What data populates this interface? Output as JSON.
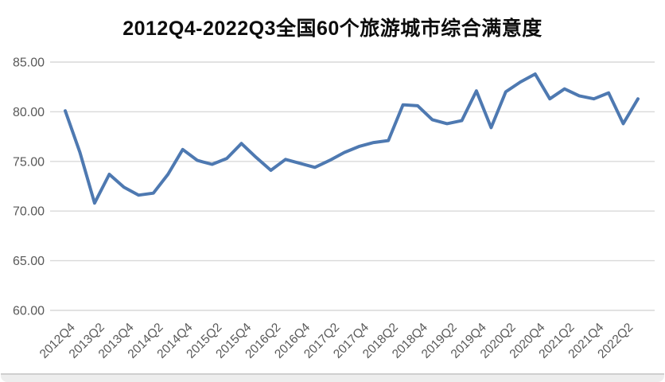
{
  "chart_data": {
    "type": "line",
    "title": "2012Q4-2022Q3全国60个旅游城市综合满意度",
    "categories": [
      "2012Q4",
      "2013Q1",
      "2013Q2",
      "2013Q3",
      "2013Q4",
      "2014Q1",
      "2014Q2",
      "2014Q3",
      "2014Q4",
      "2015Q1",
      "2015Q2",
      "2015Q3",
      "2015Q4",
      "2016Q1",
      "2016Q2",
      "2016Q3",
      "2016Q4",
      "2017Q1",
      "2017Q2",
      "2017Q3",
      "2017Q4",
      "2018Q1",
      "2018Q2",
      "2018Q3",
      "2018Q4",
      "2019Q1",
      "2019Q2",
      "2019Q3",
      "2019Q4",
      "2020Q1",
      "2020Q2",
      "2020Q3",
      "2020Q4",
      "2021Q1",
      "2021Q2",
      "2021Q3",
      "2021Q4",
      "2022Q1",
      "2022Q2",
      "2022Q3"
    ],
    "values": [
      80.1,
      75.9,
      70.8,
      73.7,
      72.4,
      71.6,
      71.8,
      73.7,
      76.2,
      75.1,
      74.7,
      75.3,
      76.8,
      75.4,
      74.1,
      75.2,
      74.8,
      74.4,
      75.1,
      75.9,
      76.5,
      76.9,
      77.1,
      80.7,
      80.6,
      79.2,
      78.8,
      79.1,
      82.1,
      78.4,
      82.0,
      83.0,
      83.8,
      81.3,
      82.3,
      81.6,
      81.3,
      81.9,
      78.8,
      81.3
    ],
    "x_tick_labels": [
      "2012Q4",
      "2013Q2",
      "2013Q4",
      "2014Q2",
      "2014Q4",
      "2015Q2",
      "2015Q4",
      "2016Q2",
      "2016Q4",
      "2017Q2",
      "2017Q4",
      "2018Q2",
      "2018Q4",
      "2019Q2",
      "2019Q4",
      "2020Q2",
      "2020Q4",
      "2021Q2",
      "2021Q4",
      "2022Q2"
    ],
    "x_tick_every": 2,
    "ytick_labels": [
      "85.00",
      "80.00",
      "75.00",
      "70.00",
      "65.00",
      "60.00"
    ],
    "ytick_values": [
      85,
      80,
      75,
      70,
      65,
      60
    ],
    "ylim": [
      60,
      85
    ],
    "xlabel": "",
    "ylabel": "",
    "legend": "none",
    "grid": "horizontal",
    "colors": {
      "line": "#4e79b1",
      "gridline": "#d9d9d9",
      "tick_text": "#595959",
      "title_text": "#0d0d0d"
    }
  }
}
